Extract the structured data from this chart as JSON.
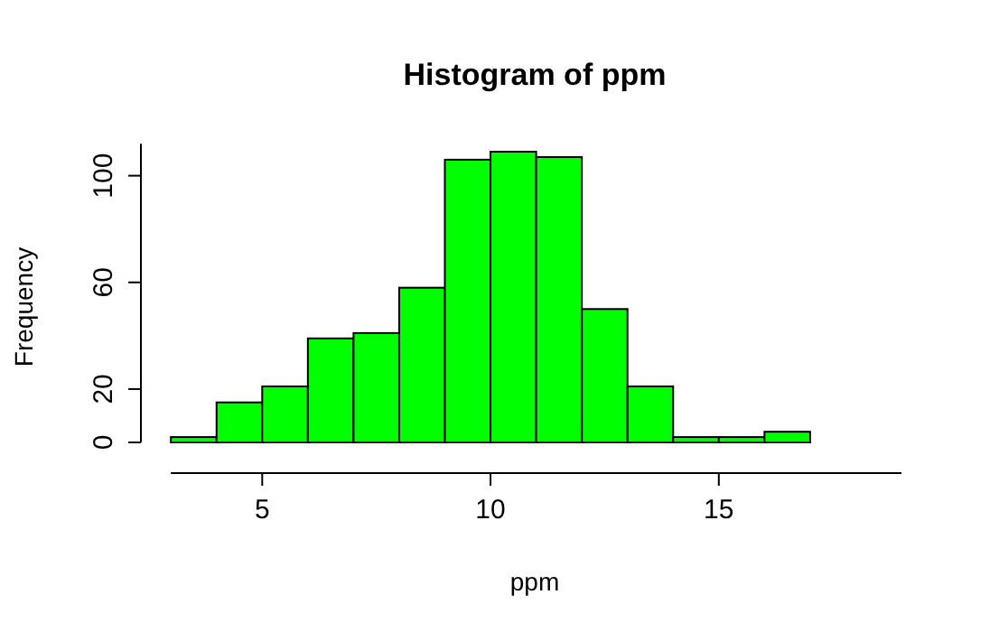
{
  "chart_data": {
    "type": "histogram",
    "title": "Histogram of ppm",
    "xlabel": "ppm",
    "ylabel": "Frequency",
    "bins": [
      3,
      4,
      5,
      6,
      7,
      8,
      9,
      10,
      11,
      12,
      13,
      14,
      15,
      16,
      17,
      18,
      19
    ],
    "values": [
      2,
      15,
      21,
      39,
      41,
      58,
      106,
      109,
      107,
      50,
      21,
      2,
      2,
      4,
      0,
      0
    ],
    "color": "#00ff00",
    "xlim": [
      3,
      19
    ],
    "xticks": [
      5,
      10,
      15
    ],
    "ylim": [
      0,
      112
    ],
    "yticks": [
      0,
      20,
      60,
      100
    ],
    "grid": false
  }
}
